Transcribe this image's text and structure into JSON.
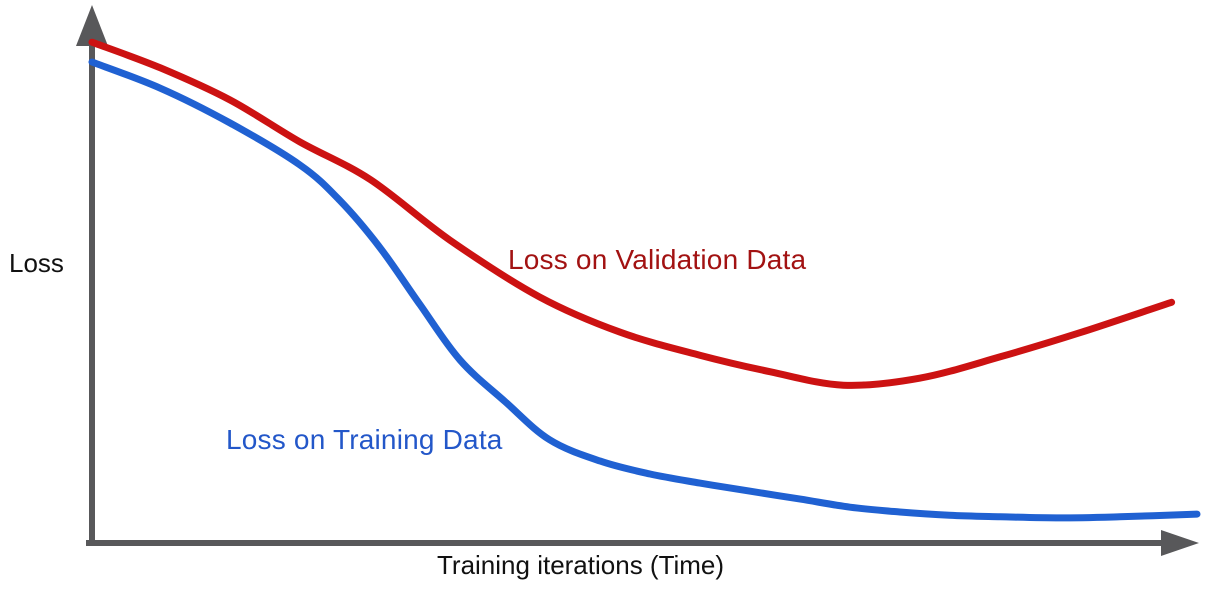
{
  "figure": {
    "background": "#ffffff",
    "colors": {
      "axis": "#58585a",
      "text": "#111111"
    }
  },
  "chart_data": {
    "type": "line",
    "title": "",
    "xlabel": "Training iterations (Time)",
    "ylabel": "Loss",
    "axes": {
      "x_range_normalized": [
        0,
        100
      ],
      "y_range_normalized": [
        0,
        100
      ],
      "tick_labels": "none",
      "grid": false,
      "arrows": true
    },
    "legend": "inline curve annotations (no legend box)",
    "series": [
      {
        "name": "Loss on Validation Data",
        "color": "#cc1212",
        "label_color": "#a21212",
        "shape": "decreases then rises again after a minimum (overfitting)",
        "x": [
          0,
          6.2,
          12.5,
          18.8,
          25.2,
          32.4,
          40.5,
          47.8,
          55.0,
          61.4,
          68.0,
          74.9,
          82.2,
          89.4,
          97.7
        ],
        "y": [
          93.6,
          88.8,
          82.8,
          75.0,
          67.9,
          56.6,
          46.0,
          39.4,
          35.1,
          32.0,
          29.5,
          30.8,
          34.8,
          39.3,
          45.0
        ]
      },
      {
        "name": "Loss on Training Data",
        "color": "#2061d2",
        "label_color": "#2357c9",
        "shape": "monotonically decreases and flattens near zero",
        "x": [
          0,
          6.2,
          12.5,
          18.8,
          22.4,
          26.1,
          29.7,
          33.3,
          37.4,
          41.4,
          46.0,
          50.5,
          55.0,
          59.5,
          64.1,
          68.6,
          73.1,
          77.6,
          82.2,
          87.6,
          93.0,
          100
        ],
        "y": [
          89.9,
          85.0,
          78.5,
          70.7,
          64.1,
          55.1,
          44.5,
          34.2,
          26.4,
          19.3,
          15.3,
          12.9,
          11.2,
          9.7,
          8.2,
          6.7,
          5.8,
          5.2,
          4.9,
          4.7,
          4.9,
          5.4
        ]
      }
    ]
  }
}
